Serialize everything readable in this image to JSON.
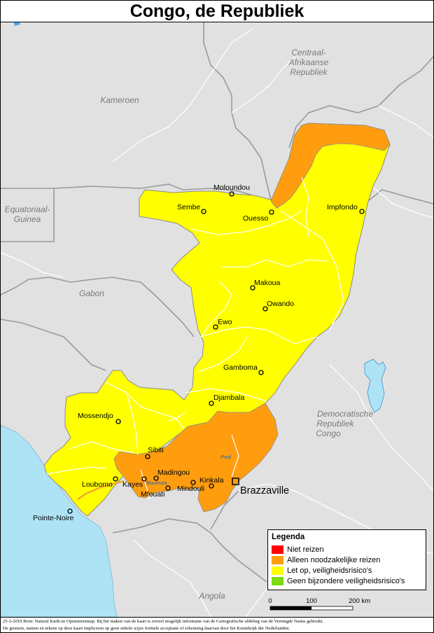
{
  "title": "Congo, de Republiek",
  "countries": {
    "car_line1": "Centraal-",
    "car_line2": "Afrikaanse",
    "car_line3": "Republiek",
    "cameroon": "Kameroen",
    "eq_guinea_line1": "Equatoriaal-",
    "eq_guinea_line2": "Guinea",
    "gabon": "Gabon",
    "drc_line1": "Democratische",
    "drc_line2": "Republiek",
    "drc_line3": "Congo",
    "angola": "Angola"
  },
  "cities": {
    "moloundou": "Moloundou",
    "sembe": "Sembe",
    "ouesso": "Ouesso",
    "impfondo": "Impfondo",
    "makoua": "Makoua",
    "owando": "Owando",
    "ewo": "Ewo",
    "gamboma": "Gamboma",
    "djambala": "Djambala",
    "mossendjo": "Mossendjo",
    "sibiti": "Sibiti",
    "madingou": "Madingou",
    "loubomo": "Loubomo",
    "kayes": "Kayes",
    "mfouati": "Mfouati",
    "mindouli": "Mindouli",
    "kinkala": "Kinkala",
    "pointe_noire": "Pointe-Noire"
  },
  "capital": "Brazzaville",
  "regions": {
    "pool": "Pool",
    "bouenza": "Bouenza"
  },
  "legend": {
    "title": "Legenda",
    "items": [
      {
        "label": "Niet reizen",
        "color": "#ff0000"
      },
      {
        "label": "Alleen noodzakelijke reizen",
        "color": "#ff9d0f"
      },
      {
        "label": "Let op, veiligheidsrisico's",
        "color": "#ffff00"
      },
      {
        "label": "Geen bijzondere veiligheidsrisico's",
        "color": "#7ddb0e"
      }
    ]
  },
  "scale": {
    "tick_0": "0",
    "tick_100": "100",
    "tick_200": "200 km"
  },
  "footer": {
    "line1": "25-3-2019 Bron: Natural Earth en Openstreetmap. Bij het maken van de kaart is zoveel mogelijk informatie van de Cartografische afdeling van de Verenigde Naties gebruikt.",
    "line2": "De grenzen, namen en tekens op deze kaart impliceren op geen enkele wijze formele acceptatie of erkenning daarvan door het Koninkrijk der Nederlanden."
  },
  "colors": {
    "land": "#e1e1e1",
    "sea": "#aee3f6",
    "yellow": "#ffff00",
    "orange": "#ff9d0f",
    "border": "#9a9a9a",
    "river": "#ffffff"
  }
}
